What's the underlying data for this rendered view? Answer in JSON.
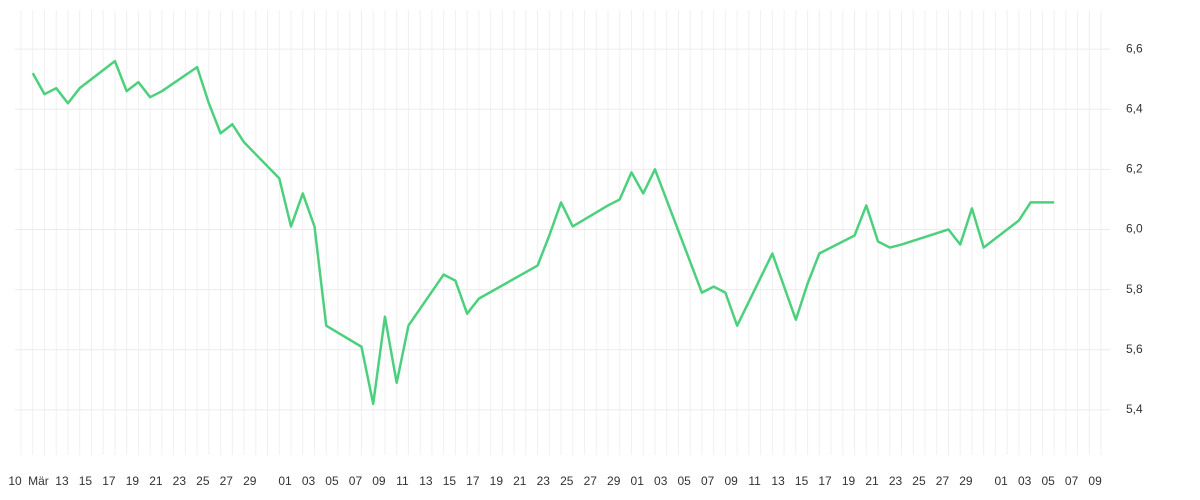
{
  "chart_data": {
    "type": "line",
    "categories": [
      "10",
      null,
      "Mär",
      null,
      "13",
      null,
      "15",
      null,
      "17",
      null,
      "19",
      null,
      "21",
      null,
      "23",
      null,
      "25",
      null,
      "27",
      null,
      "29",
      null,
      null,
      "01",
      null,
      "03",
      null,
      "05",
      null,
      "07",
      null,
      "09",
      null,
      "11",
      null,
      "13",
      null,
      "15",
      null,
      "17",
      null,
      "19",
      null,
      "21",
      null,
      "23",
      null,
      "25",
      null,
      "27",
      null,
      "29",
      null,
      "01",
      null,
      "03",
      null,
      "05",
      null,
      "07",
      null,
      "09",
      null,
      "11",
      null,
      "13",
      null,
      "15",
      null,
      "17",
      null,
      "19",
      null,
      "21",
      null,
      "23",
      null,
      "25",
      null,
      "27",
      null,
      "29",
      null,
      null,
      "01",
      null,
      "03",
      null,
      "05",
      null,
      "07",
      null,
      "09"
    ],
    "series": [
      {
        "color": "#4cd07d",
        "x": [
          1,
          2,
          3,
          4,
          5,
          8,
          9,
          10,
          11,
          12,
          15,
          16,
          17,
          18,
          19,
          22,
          23,
          24,
          25,
          26,
          29,
          30,
          31,
          32,
          33,
          36,
          37,
          38,
          39,
          44,
          45,
          46,
          47,
          50,
          51,
          52,
          53,
          54,
          58,
          59,
          60,
          61,
          64,
          65,
          66,
          67,
          68,
          71,
          72,
          73,
          74,
          75,
          79,
          80,
          81,
          82,
          85,
          86,
          88
        ],
        "values": [
          6.52,
          6.45,
          6.47,
          6.42,
          6.47,
          6.56,
          6.46,
          6.49,
          6.44,
          6.46,
          6.54,
          6.42,
          6.32,
          6.35,
          6.29,
          6.17,
          6.01,
          6.12,
          6.01,
          5.68,
          5.61,
          5.42,
          5.71,
          5.49,
          5.68,
          5.85,
          5.83,
          5.72,
          5.77,
          5.88,
          5.98,
          6.09,
          6.01,
          6.08,
          6.1,
          6.19,
          6.12,
          6.2,
          5.79,
          5.81,
          5.79,
          5.68,
          5.92,
          5.81,
          5.7,
          5.82,
          5.92,
          5.98,
          6.08,
          5.96,
          5.94,
          5.95,
          6.0,
          5.95,
          6.07,
          5.94,
          6.03,
          6.09,
          6.09
        ]
      }
    ],
    "ylim": [
      5.25,
      6.73
    ],
    "yticks": [
      {
        "value": 5.4,
        "label": "5,4"
      },
      {
        "value": 5.6,
        "label": "5,6"
      },
      {
        "value": 5.8,
        "label": "5,8"
      },
      {
        "value": 6.0,
        "label": "6,0"
      },
      {
        "value": 6.2,
        "label": "6,2"
      },
      {
        "value": 6.4,
        "label": "6,4"
      },
      {
        "value": 6.6,
        "label": "6,6"
      }
    ],
    "grid": true,
    "y_axis_side": "right"
  }
}
